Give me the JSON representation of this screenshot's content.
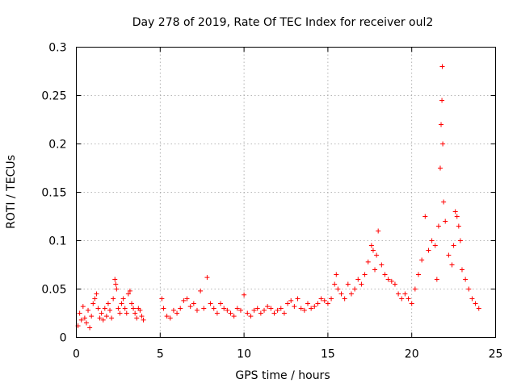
{
  "chart_data": {
    "type": "scatter",
    "title": "Day 278 of 2019, Rate Of TEC Index for receiver oul2",
    "xlabel": "GPS time / hours",
    "ylabel": "ROTI / TECUs",
    "xlim": [
      0,
      25
    ],
    "ylim": [
      0,
      0.3
    ],
    "xticks": [
      0,
      5,
      10,
      15,
      20,
      25
    ],
    "xtick_labels": [
      "0",
      "5",
      "10",
      "15",
      "20",
      "25"
    ],
    "yticks": [
      0,
      0.05,
      0.1,
      0.15,
      0.2,
      0.25,
      0.3
    ],
    "ytick_labels": [
      "0",
      "0.05",
      "0.1",
      "0.15",
      "0.2",
      "0.25",
      "0.3"
    ],
    "grid": true,
    "marker": "+",
    "marker_color": "#ff0000",
    "series": [
      {
        "name": "ROTI",
        "points": [
          [
            0.1,
            0.012
          ],
          [
            0.2,
            0.025
          ],
          [
            0.3,
            0.018
          ],
          [
            0.4,
            0.032
          ],
          [
            0.5,
            0.02
          ],
          [
            0.6,
            0.015
          ],
          [
            0.7,
            0.028
          ],
          [
            0.8,
            0.01
          ],
          [
            0.9,
            0.022
          ],
          [
            1.0,
            0.035
          ],
          [
            1.1,
            0.04
          ],
          [
            1.2,
            0.045
          ],
          [
            1.3,
            0.03
          ],
          [
            1.4,
            0.02
          ],
          [
            1.5,
            0.025
          ],
          [
            1.6,
            0.018
          ],
          [
            1.7,
            0.03
          ],
          [
            1.8,
            0.022
          ],
          [
            1.9,
            0.035
          ],
          [
            2.0,
            0.028
          ],
          [
            2.1,
            0.02
          ],
          [
            2.2,
            0.04
          ],
          [
            2.3,
            0.06
          ],
          [
            2.35,
            0.055
          ],
          [
            2.4,
            0.05
          ],
          [
            2.5,
            0.03
          ],
          [
            2.6,
            0.025
          ],
          [
            2.7,
            0.035
          ],
          [
            2.8,
            0.04
          ],
          [
            2.9,
            0.03
          ],
          [
            3.0,
            0.025
          ],
          [
            3.1,
            0.045
          ],
          [
            3.2,
            0.048
          ],
          [
            3.3,
            0.035
          ],
          [
            3.4,
            0.03
          ],
          [
            3.5,
            0.025
          ],
          [
            3.6,
            0.02
          ],
          [
            3.7,
            0.03
          ],
          [
            3.8,
            0.028
          ],
          [
            3.9,
            0.022
          ],
          [
            4.0,
            0.018
          ],
          [
            5.1,
            0.04
          ],
          [
            5.2,
            0.03
          ],
          [
            5.4,
            0.022
          ],
          [
            5.6,
            0.02
          ],
          [
            5.8,
            0.028
          ],
          [
            6.0,
            0.025
          ],
          [
            6.2,
            0.03
          ],
          [
            6.4,
            0.038
          ],
          [
            6.6,
            0.04
          ],
          [
            6.8,
            0.032
          ],
          [
            7.0,
            0.035
          ],
          [
            7.2,
            0.028
          ],
          [
            7.4,
            0.048
          ],
          [
            7.6,
            0.03
          ],
          [
            7.8,
            0.062
          ],
          [
            8.0,
            0.035
          ],
          [
            8.2,
            0.03
          ],
          [
            8.4,
            0.025
          ],
          [
            8.6,
            0.035
          ],
          [
            8.8,
            0.03
          ],
          [
            9.0,
            0.028
          ],
          [
            9.2,
            0.025
          ],
          [
            9.4,
            0.022
          ],
          [
            9.6,
            0.03
          ],
          [
            9.8,
            0.028
          ],
          [
            10.0,
            0.044
          ],
          [
            10.2,
            0.025
          ],
          [
            10.4,
            0.022
          ],
          [
            10.6,
            0.028
          ],
          [
            10.8,
            0.03
          ],
          [
            11.0,
            0.025
          ],
          [
            11.2,
            0.028
          ],
          [
            11.4,
            0.032
          ],
          [
            11.6,
            0.03
          ],
          [
            11.8,
            0.025
          ],
          [
            12.0,
            0.028
          ],
          [
            12.2,
            0.03
          ],
          [
            12.4,
            0.025
          ],
          [
            12.6,
            0.035
          ],
          [
            12.8,
            0.038
          ],
          [
            13.0,
            0.032
          ],
          [
            13.2,
            0.04
          ],
          [
            13.4,
            0.03
          ],
          [
            13.6,
            0.028
          ],
          [
            13.8,
            0.035
          ],
          [
            14.0,
            0.03
          ],
          [
            14.2,
            0.032
          ],
          [
            14.4,
            0.035
          ],
          [
            14.6,
            0.04
          ],
          [
            14.8,
            0.038
          ],
          [
            15.0,
            0.035
          ],
          [
            15.2,
            0.04
          ],
          [
            15.4,
            0.055
          ],
          [
            15.5,
            0.065
          ],
          [
            15.6,
            0.05
          ],
          [
            15.8,
            0.045
          ],
          [
            16.0,
            0.04
          ],
          [
            16.2,
            0.055
          ],
          [
            16.4,
            0.045
          ],
          [
            16.6,
            0.05
          ],
          [
            16.8,
            0.06
          ],
          [
            17.0,
            0.055
          ],
          [
            17.2,
            0.065
          ],
          [
            17.4,
            0.078
          ],
          [
            17.6,
            0.095
          ],
          [
            17.7,
            0.09
          ],
          [
            17.8,
            0.07
          ],
          [
            17.9,
            0.085
          ],
          [
            18.0,
            0.11
          ],
          [
            18.2,
            0.075
          ],
          [
            18.4,
            0.065
          ],
          [
            18.6,
            0.06
          ],
          [
            18.8,
            0.058
          ],
          [
            19.0,
            0.055
          ],
          [
            19.2,
            0.045
          ],
          [
            19.4,
            0.04
          ],
          [
            19.6,
            0.045
          ],
          [
            19.8,
            0.04
          ],
          [
            20.0,
            0.035
          ],
          [
            20.2,
            0.05
          ],
          [
            20.4,
            0.065
          ],
          [
            20.6,
            0.08
          ],
          [
            20.8,
            0.125
          ],
          [
            21.0,
            0.09
          ],
          [
            21.2,
            0.1
          ],
          [
            21.4,
            0.095
          ],
          [
            21.5,
            0.06
          ],
          [
            21.6,
            0.115
          ],
          [
            21.7,
            0.175
          ],
          [
            21.75,
            0.22
          ],
          [
            21.8,
            0.245
          ],
          [
            21.82,
            0.28
          ],
          [
            21.85,
            0.2
          ],
          [
            21.9,
            0.14
          ],
          [
            22.0,
            0.12
          ],
          [
            22.2,
            0.085
          ],
          [
            22.4,
            0.075
          ],
          [
            22.5,
            0.095
          ],
          [
            22.6,
            0.13
          ],
          [
            22.7,
            0.125
          ],
          [
            22.8,
            0.115
          ],
          [
            22.9,
            0.1
          ],
          [
            23.0,
            0.07
          ],
          [
            23.2,
            0.06
          ],
          [
            23.4,
            0.05
          ],
          [
            23.6,
            0.04
          ],
          [
            23.8,
            0.035
          ],
          [
            24.0,
            0.03
          ]
        ]
      }
    ]
  }
}
